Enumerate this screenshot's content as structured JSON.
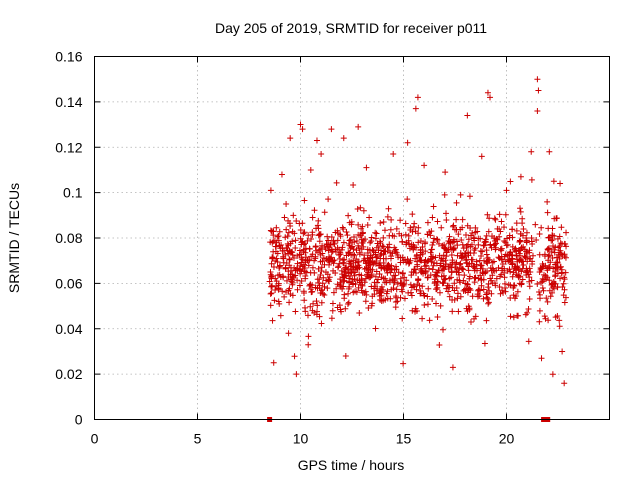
{
  "chart_data": {
    "type": "scatter",
    "title": "Day 205 of 2019, SRMTID for receiver p011",
    "xlabel": "GPS time / hours",
    "ylabel": "SRMTID / TECUs",
    "xlim": [
      0,
      25
    ],
    "ylim": [
      0,
      0.16
    ],
    "x_ticks": [
      0,
      5,
      10,
      15,
      20
    ],
    "x_tick_labels": [
      "0",
      "5",
      "10",
      "15",
      "20"
    ],
    "y_ticks": [
      0,
      0.02,
      0.04,
      0.06,
      0.08,
      0.1,
      0.12,
      0.14,
      0.16
    ],
    "y_tick_labels": [
      "0",
      "0.02",
      "0.04",
      "0.06",
      "0.08",
      "0.1",
      "0.12",
      "0.14",
      "0.16"
    ],
    "grid": true,
    "marker": "plus",
    "color": "#cc0000",
    "series": [
      {
        "name": "SRMTID",
        "time_range_hours": [
          8.5,
          22.9
        ],
        "baseline_points": [
          {
            "x": 8.5,
            "y": 0
          },
          {
            "x": 21.8,
            "y": 0
          },
          {
            "x": 21.9,
            "y": 0
          },
          {
            "x": 22.0,
            "y": 0
          }
        ],
        "notable_points": [
          {
            "x": 8.6,
            "y": 0.083
          },
          {
            "x": 8.7,
            "y": 0.025
          },
          {
            "x": 9.1,
            "y": 0.108
          },
          {
            "x": 9.3,
            "y": 0.095
          },
          {
            "x": 9.5,
            "y": 0.124
          },
          {
            "x": 9.8,
            "y": 0.02
          },
          {
            "x": 10.0,
            "y": 0.13
          },
          {
            "x": 10.1,
            "y": 0.128
          },
          {
            "x": 10.5,
            "y": 0.11
          },
          {
            "x": 10.8,
            "y": 0.123
          },
          {
            "x": 11.0,
            "y": 0.117
          },
          {
            "x": 11.5,
            "y": 0.128
          },
          {
            "x": 12.1,
            "y": 0.124
          },
          {
            "x": 12.2,
            "y": 0.028
          },
          {
            "x": 12.8,
            "y": 0.129
          },
          {
            "x": 13.2,
            "y": 0.111
          },
          {
            "x": 14.5,
            "y": 0.117
          },
          {
            "x": 15.2,
            "y": 0.122
          },
          {
            "x": 15.6,
            "y": 0.137
          },
          {
            "x": 15.7,
            "y": 0.142
          },
          {
            "x": 16.0,
            "y": 0.112
          },
          {
            "x": 17.0,
            "y": 0.099
          },
          {
            "x": 17.4,
            "y": 0.023
          },
          {
            "x": 18.1,
            "y": 0.134
          },
          {
            "x": 18.8,
            "y": 0.116
          },
          {
            "x": 19.1,
            "y": 0.144
          },
          {
            "x": 19.2,
            "y": 0.142
          },
          {
            "x": 20.0,
            "y": 0.101
          },
          {
            "x": 20.7,
            "y": 0.107
          },
          {
            "x": 21.2,
            "y": 0.118
          },
          {
            "x": 21.5,
            "y": 0.15
          },
          {
            "x": 21.55,
            "y": 0.145
          },
          {
            "x": 21.5,
            "y": 0.136
          },
          {
            "x": 21.7,
            "y": 0.027
          },
          {
            "x": 22.3,
            "y": 0.105
          },
          {
            "x": 22.6,
            "y": 0.104
          },
          {
            "x": 22.8,
            "y": 0.016
          },
          {
            "x": 22.7,
            "y": 0.03
          }
        ],
        "typical_range": [
          0.04,
          0.1
        ],
        "typical_center": 0.068,
        "approx_point_count": 1500
      }
    ]
  }
}
